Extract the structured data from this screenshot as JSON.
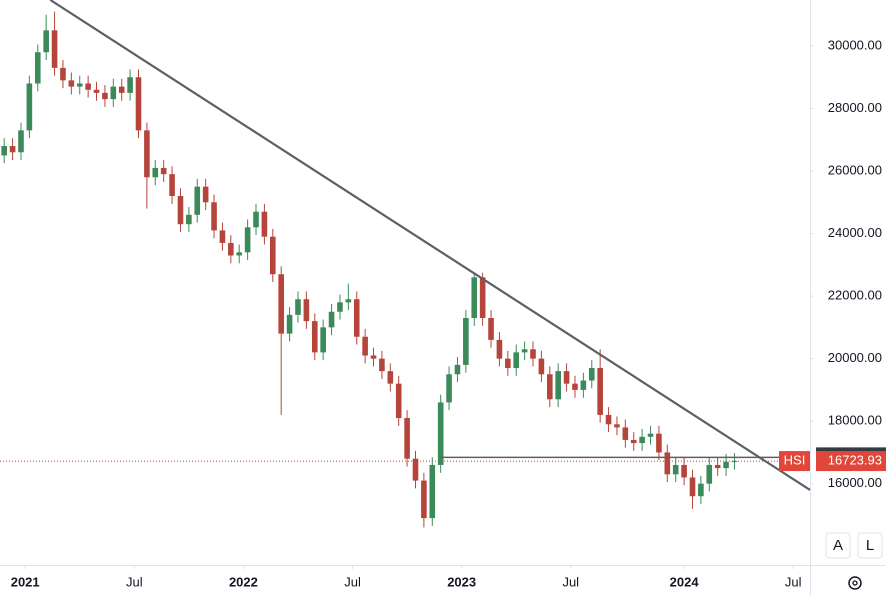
{
  "chart_data": {
    "type": "candlestick",
    "symbol": "HSI",
    "up_color": "#3b8a5a",
    "down_color": "#b5453a",
    "line_color": "#5d5f66",
    "xlim": [
      -6,
      187
    ],
    "ylim": [
      13400,
      31470
    ],
    "xticks": [
      {
        "value": 0,
        "label": "2021",
        "bold": true
      },
      {
        "value": 26,
        "label": "Jul",
        "bold": false
      },
      {
        "value": 52,
        "label": "2022",
        "bold": true
      },
      {
        "value": 78,
        "label": "Jul",
        "bold": false
      },
      {
        "value": 104,
        "label": "2023",
        "bold": true
      },
      {
        "value": 130,
        "label": "Jul",
        "bold": false
      },
      {
        "value": 157,
        "label": "2024",
        "bold": true
      },
      {
        "value": 183,
        "label": "Jul",
        "bold": false
      }
    ],
    "yticks": [
      {
        "value": 16000,
        "label": "16000.00"
      },
      {
        "value": 18000,
        "label": "18000.00"
      },
      {
        "value": 20000,
        "label": "20000.00"
      },
      {
        "value": 22000,
        "label": "22000.00"
      },
      {
        "value": 24000,
        "label": "24000.00"
      },
      {
        "value": 26000,
        "label": "26000.00"
      },
      {
        "value": 28000,
        "label": "28000.00"
      },
      {
        "value": 30000,
        "label": "30000.00"
      }
    ],
    "x": [
      -5,
      -3,
      -1,
      1,
      3,
      5,
      7,
      9,
      11,
      13,
      15,
      17,
      19,
      21,
      23,
      25,
      27,
      29,
      31,
      33,
      35,
      37,
      39,
      41,
      43,
      45,
      47,
      49,
      51,
      53,
      55,
      57,
      59,
      61,
      63,
      65,
      67,
      69,
      71,
      73,
      75,
      77,
      79,
      81,
      83,
      85,
      87,
      89,
      91,
      93,
      95,
      97,
      99,
      101,
      103,
      105,
      107,
      109,
      111,
      113,
      115,
      117,
      119,
      121,
      123,
      125,
      127,
      129,
      131,
      133,
      135,
      137,
      139,
      141,
      143,
      145,
      147,
      149,
      151,
      153,
      155,
      157,
      159,
      161,
      163,
      165,
      167,
      169
    ],
    "open": [
      26500,
      26800,
      26600,
      27300,
      28800,
      29800,
      30500,
      29300,
      28900,
      28700,
      28800,
      28600,
      28500,
      28300,
      28700,
      28500,
      29000,
      27300,
      25800,
      26100,
      25900,
      25200,
      24300,
      24600,
      25500,
      25000,
      24100,
      23700,
      23300,
      23400,
      24200,
      24700,
      23900,
      22700,
      20800,
      21400,
      21900,
      21200,
      20200,
      21000,
      21500,
      21800,
      21900,
      20700,
      20100,
      20000,
      19600,
      19200,
      18100,
      16800,
      16100,
      14900,
      16600,
      18600,
      19500,
      19800,
      21300,
      22600,
      21300,
      20600,
      20000,
      19700,
      20200,
      20300,
      20000,
      19500,
      18700,
      19600,
      19200,
      19000,
      19300,
      19700,
      18200,
      17900,
      17800,
      17400,
      17300,
      17500,
      17600,
      17000,
      16300,
      16600,
      16200,
      15600,
      16000,
      16600,
      16500,
      16700
    ],
    "high": [
      27050,
      27050,
      27550,
      29050,
      30050,
      31000,
      31100,
      29550,
      29150,
      29050,
      29050,
      28850,
      28750,
      28950,
      28950,
      29250,
      29250,
      27550,
      26350,
      26350,
      26150,
      25450,
      24850,
      25750,
      25750,
      25250,
      24350,
      23950,
      23650,
      24450,
      24950,
      24950,
      24150,
      22950,
      21650,
      22150,
      22150,
      21450,
      21250,
      21750,
      22050,
      22400,
      22150,
      20950,
      20350,
      20250,
      19850,
      19450,
      18350,
      17050,
      16350,
      16850,
      18850,
      19750,
      20050,
      21550,
      22700,
      22750,
      21550,
      20850,
      20250,
      20450,
      20550,
      20550,
      20250,
      19750,
      19850,
      19850,
      19450,
      19550,
      19950,
      20300,
      18450,
      18150,
      18050,
      17650,
      17750,
      17850,
      17850,
      17250,
      16850,
      16850,
      16450,
      16250,
      16850,
      16850,
      16950,
      16980
    ],
    "low": [
      26250,
      26350,
      26350,
      27050,
      28550,
      29550,
      29050,
      28650,
      28450,
      28450,
      28350,
      28250,
      28050,
      28050,
      28250,
      28250,
      27050,
      24800,
      25550,
      25650,
      24950,
      24050,
      24050,
      24350,
      24750,
      23850,
      23450,
      23050,
      23050,
      23150,
      23950,
      23650,
      22450,
      18200,
      20550,
      21150,
      20950,
      19950,
      19950,
      20750,
      21250,
      21550,
      20450,
      19850,
      19750,
      19350,
      18950,
      17850,
      16550,
      15850,
      14600,
      14650,
      16350,
      18350,
      19250,
      19550,
      21050,
      21050,
      20350,
      19750,
      19450,
      19450,
      19950,
      19750,
      19250,
      18450,
      18450,
      18950,
      18750,
      18750,
      19050,
      17950,
      17650,
      17550,
      17150,
      17050,
      17050,
      17250,
      16750,
      16050,
      16050,
      15950,
      15200,
      15350,
      15750,
      16250,
      16250,
      16450
    ],
    "close": [
      26800,
      26600,
      27300,
      28800,
      29800,
      30500,
      29300,
      28900,
      28700,
      28800,
      28600,
      28500,
      28300,
      28700,
      28500,
      29000,
      27300,
      25800,
      26100,
      25900,
      25200,
      24300,
      24600,
      25500,
      25000,
      24100,
      23700,
      23300,
      23400,
      24200,
      24700,
      23900,
      22700,
      20800,
      21400,
      21900,
      21200,
      20200,
      21000,
      21500,
      21800,
      21900,
      20700,
      20100,
      20000,
      19600,
      19200,
      18100,
      16800,
      16100,
      14900,
      16600,
      18600,
      19500,
      19800,
      21300,
      22600,
      21300,
      20600,
      20000,
      19700,
      20200,
      20300,
      20000,
      19500,
      18700,
      19600,
      19200,
      19000,
      19300,
      19700,
      18200,
      17900,
      17800,
      17400,
      17300,
      17500,
      17600,
      17000,
      16300,
      16600,
      16200,
      15600,
      16000,
      16600,
      16500,
      16700,
      16723.93
    ],
    "trendline": {
      "x": [
        6,
        187
      ],
      "y": [
        31470,
        15800
      ]
    },
    "support_line_x": [
      99,
      180
    ],
    "support_level": 16842.18,
    "scale_buttons": [
      "A",
      "L"
    ]
  }
}
